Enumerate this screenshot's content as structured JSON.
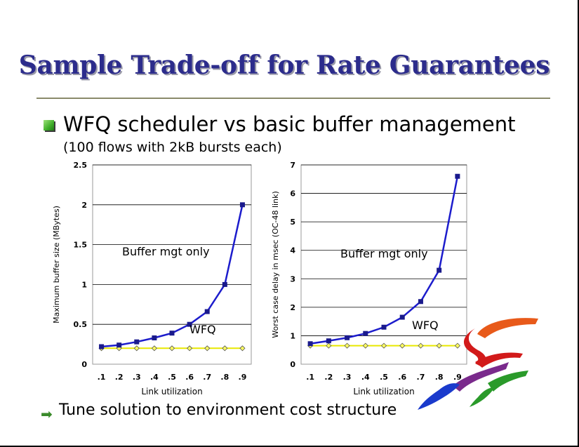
{
  "slide": {
    "title": "Sample Trade-off for Rate Guarantees",
    "bullet1": "WFQ scheduler vs basic buffer management",
    "bullet1_sub": "(100 flows with 2kB bursts each)",
    "bullet2": "Tune solution to environment cost structure"
  },
  "colors": {
    "title": "#2c2c8c",
    "buffer_series": "#1c1ccc",
    "wfq_series": "#e8e800",
    "bullet": "#3fae2a"
  },
  "chart_data": [
    {
      "type": "line",
      "xlabel": "Link utilization",
      "ylabel": "Maximum buffer size (MBytes)",
      "categories": [
        ".1",
        ".2",
        ".3",
        ".4",
        ".5",
        ".6",
        ".7",
        ".8",
        ".9"
      ],
      "ylim": [
        0,
        2.5
      ],
      "yticks": [
        "0",
        "0.5",
        "1",
        "1.5",
        "2",
        "2.5"
      ],
      "grid": true,
      "series": [
        {
          "name": "Buffer mgt only",
          "values": [
            0.22,
            0.24,
            0.28,
            0.33,
            0.39,
            0.5,
            0.66,
            1.0,
            2.0
          ]
        },
        {
          "name": "WFQ",
          "values": [
            0.2,
            0.2,
            0.2,
            0.2,
            0.2,
            0.2,
            0.2,
            0.2,
            0.2
          ]
        }
      ]
    },
    {
      "type": "line",
      "xlabel": "Link utilization",
      "ylabel": "Worst case delay in msec (OC-48 link)",
      "categories": [
        ".1",
        ".2",
        ".3",
        ".4",
        ".5",
        ".6",
        ".7",
        ".8",
        ".9"
      ],
      "ylim": [
        0,
        7
      ],
      "yticks": [
        "0",
        "1",
        "2",
        "3",
        "4",
        "5",
        "6",
        "7"
      ],
      "grid": true,
      "series": [
        {
          "name": "Buffer mgt only",
          "values": [
            0.72,
            0.82,
            0.93,
            1.08,
            1.3,
            1.65,
            2.2,
            3.3,
            6.6
          ]
        },
        {
          "name": "WFQ",
          "values": [
            0.65,
            0.65,
            0.65,
            0.65,
            0.65,
            0.65,
            0.65,
            0.65,
            0.65
          ]
        }
      ]
    }
  ]
}
